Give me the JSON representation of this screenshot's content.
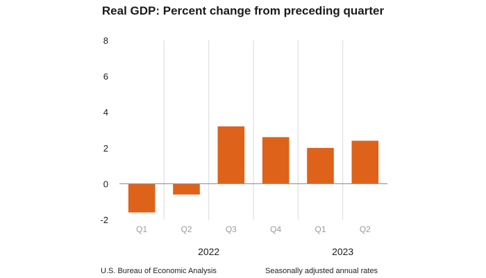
{
  "chart_data": {
    "type": "bar",
    "title": "Real GDP:  Percent change from preceding quarter",
    "categories": [
      "Q1",
      "Q2",
      "Q3",
      "Q4",
      "Q1",
      "Q2"
    ],
    "groups": [
      {
        "label": "2022",
        "categories": [
          "Q1",
          "Q2",
          "Q3",
          "Q4"
        ]
      },
      {
        "label": "2023",
        "categories": [
          "Q1",
          "Q2"
        ]
      }
    ],
    "values": [
      -1.6,
      -0.6,
      3.2,
      2.6,
      2.0,
      2.4
    ],
    "ylim": [
      -2,
      8
    ],
    "yticks": [
      "8",
      "6",
      "4",
      "2",
      "0",
      "-2"
    ],
    "xlabel": "",
    "ylabel": "",
    "grid": "vertical separators",
    "bar_color": "#de6219",
    "axis_color": "#9a9a9a",
    "grid_color": "#d9d9d9"
  },
  "footer": {
    "source": "U.S. Bureau of Economic Analysis",
    "note": "Seasonally adjusted annual rates"
  }
}
